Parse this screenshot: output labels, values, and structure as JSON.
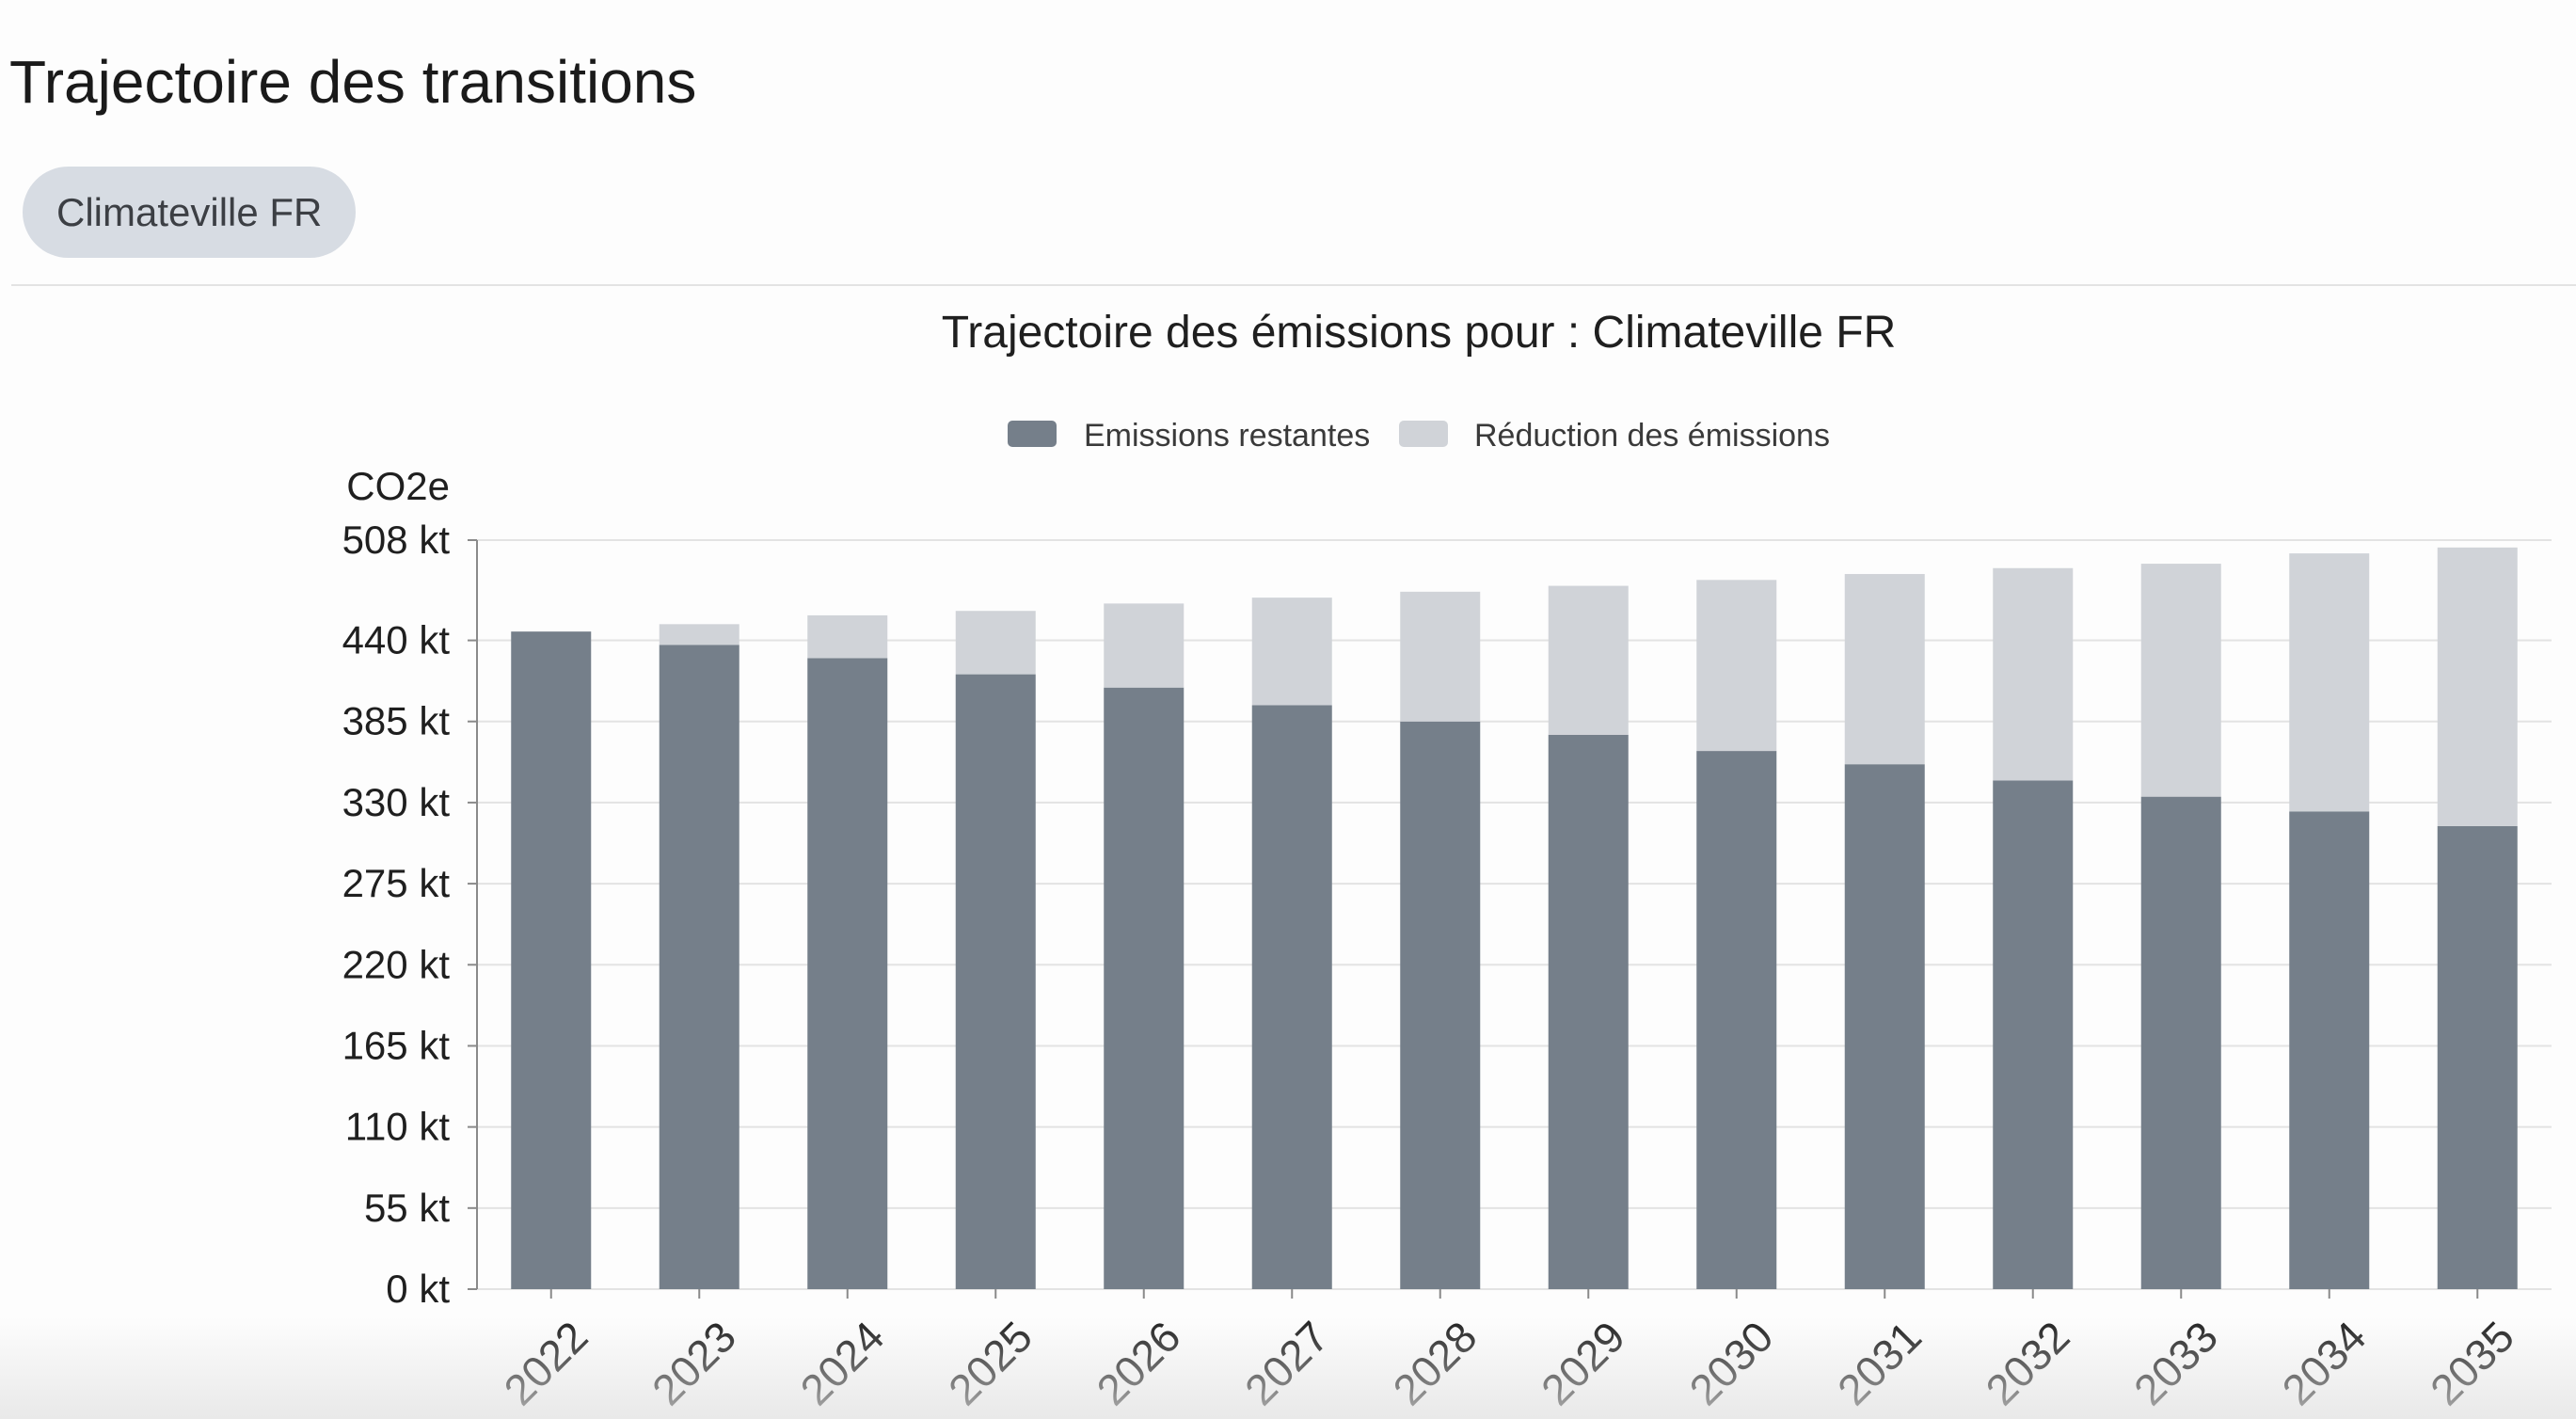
{
  "page": {
    "title": "Trajectoire des transitions"
  },
  "filter": {
    "selected_label": "Climateville FR"
  },
  "colors": {
    "remaining": "#757f8a",
    "reduction": "#d0d3d8",
    "grid": "#e3e3e3",
    "axis": "#8a8a8a",
    "text": "#1f1f1f"
  },
  "chart_data": {
    "type": "bar",
    "stacked": true,
    "title": "Trajectoire des émissions pour : Climateville FR",
    "ylabel": "CO2e",
    "xlabel": "",
    "categories": [
      "2022",
      "2023",
      "2024",
      "2025",
      "2026",
      "2027",
      "2028",
      "2029",
      "2030",
      "2031",
      "2032",
      "2033",
      "2034",
      "2035"
    ],
    "series": [
      {
        "name": "Emissions restantes",
        "color": "#757f8a",
        "values": [
          446,
          437,
          428,
          417,
          408,
          396,
          385,
          376,
          365,
          356,
          345,
          334,
          324,
          314
        ]
      },
      {
        "name": "Réduction des émissions",
        "color": "#d0d3d8",
        "values": [
          0,
          14,
          29,
          43,
          57,
          73,
          88,
          101,
          116,
          129,
          144,
          158,
          175,
          189
        ]
      }
    ],
    "yticks": [
      "0 kt",
      "55 kt",
      "110 kt",
      "165 kt",
      "220 kt",
      "275 kt",
      "330 kt",
      "385 kt",
      "440 kt",
      "508 kt"
    ],
    "ytick_values": [
      0,
      55,
      110,
      165,
      220,
      275,
      330,
      385,
      440,
      508
    ],
    "ylim": [
      0,
      508
    ],
    "unit": "kt",
    "grid": true,
    "legend_position": "top-center"
  }
}
